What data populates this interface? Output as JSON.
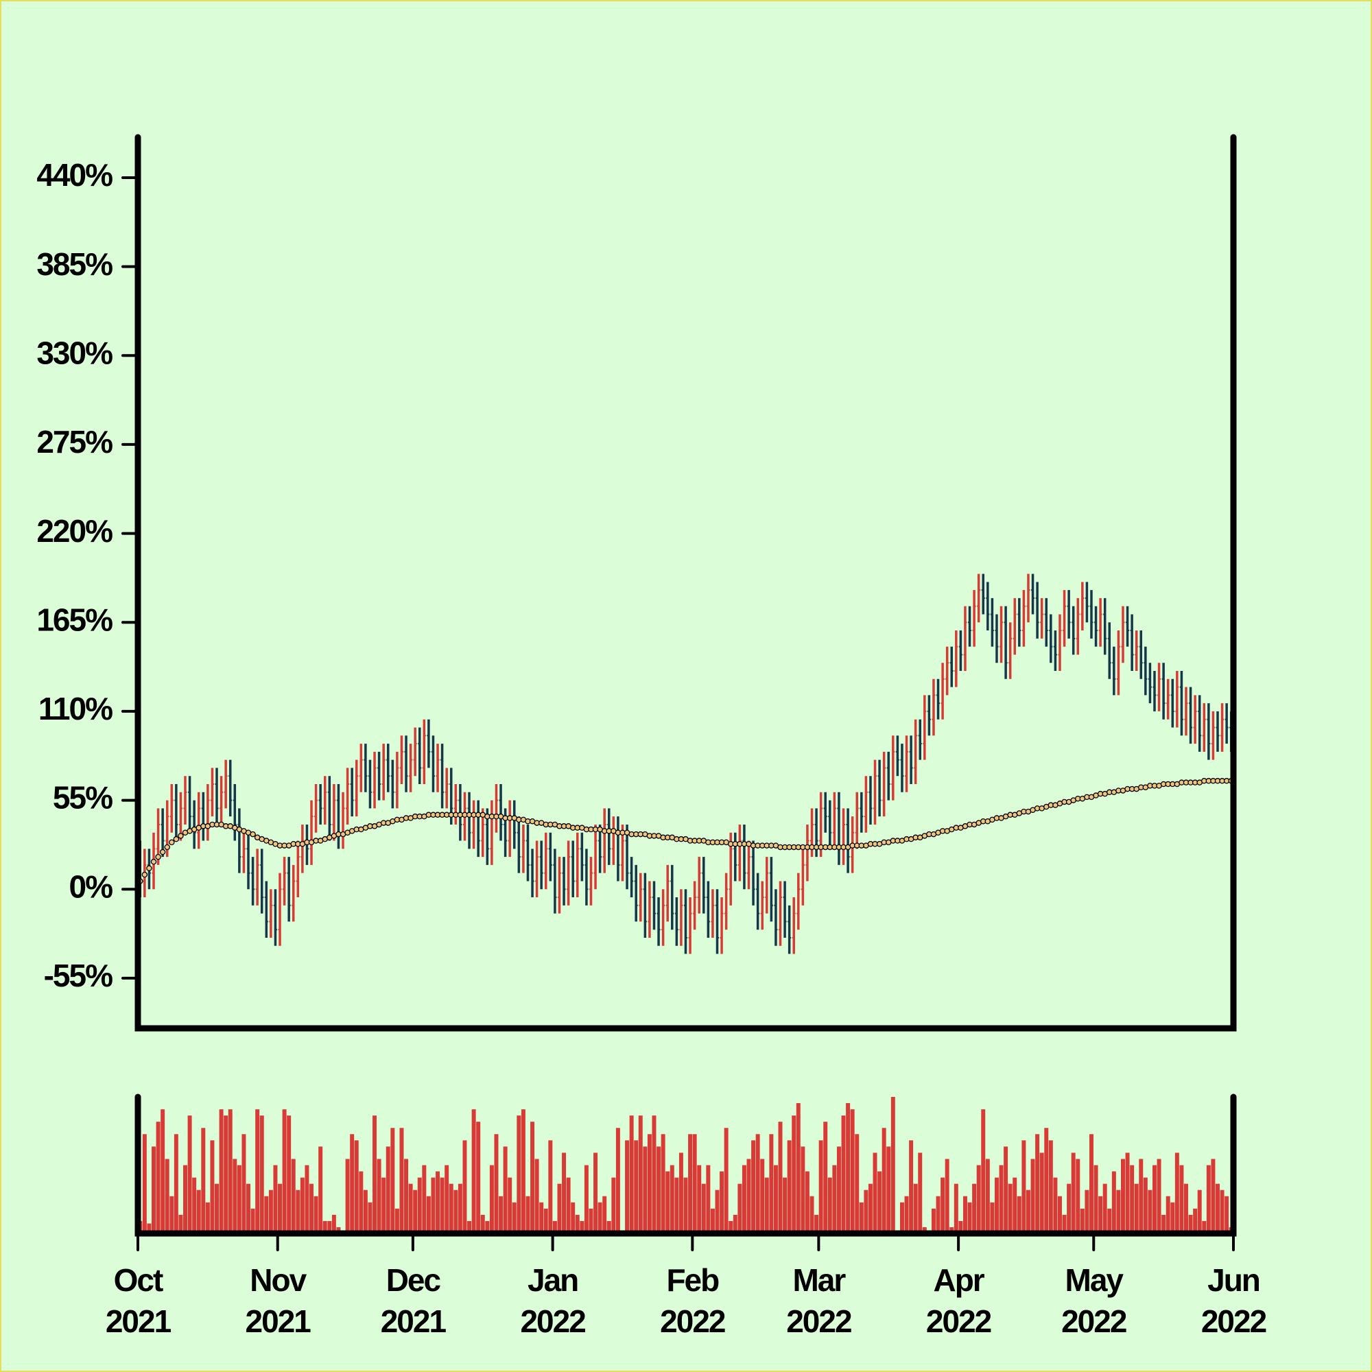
{
  "chart_data": {
    "type": "ohlc",
    "xlim": [
      0,
      243
    ],
    "xticks": [
      {
        "value": 0,
        "label": "Oct 2021"
      },
      {
        "value": 31,
        "label": "Nov 2021"
      },
      {
        "value": 61,
        "label": "Dec 2021"
      },
      {
        "value": 92,
        "label": "Jan 2022"
      },
      {
        "value": 123,
        "label": "Feb 2022"
      },
      {
        "value": 151,
        "label": "Mar 2022"
      },
      {
        "value": 182,
        "label": "Apr 2022"
      },
      {
        "value": 212,
        "label": "May 2022"
      },
      {
        "value": 243,
        "label": "Jun 2022"
      }
    ],
    "ylim": [
      -86,
      465
    ],
    "yticks": [
      {
        "value": -55,
        "label": "-55%"
      },
      {
        "value": 0,
        "label": "0%"
      },
      {
        "value": 55,
        "label": "55%"
      },
      {
        "value": 110,
        "label": "110%"
      },
      {
        "value": 165,
        "label": "165%"
      },
      {
        "value": 220,
        "label": "220%"
      },
      {
        "value": 275,
        "label": "275%"
      },
      {
        "value": 330,
        "label": "330%"
      },
      {
        "value": 385,
        "label": "385%"
      },
      {
        "value": 440,
        "label": "440%"
      }
    ],
    "up_color": "#d93a35",
    "down_color": "#14374a",
    "ma_color": "#f2c67a",
    "open": [
      20,
      5,
      15,
      10,
      25,
      40,
      30,
      45,
      55,
      40,
      50,
      60,
      45,
      35,
      50,
      40,
      55,
      65,
      50,
      60,
      70,
      55,
      40,
      20,
      25,
      10,
      0,
      15,
      -5,
      -20,
      -10,
      -25,
      0,
      10,
      -10,
      5,
      20,
      30,
      25,
      45,
      55,
      50,
      60,
      40,
      55,
      35,
      50,
      65,
      55,
      70,
      80,
      70,
      60,
      75,
      65,
      80,
      70,
      60,
      75,
      85,
      70,
      80,
      90,
      75,
      95,
      85,
      70,
      80,
      60,
      65,
      50,
      55,
      40,
      50,
      35,
      45,
      30,
      40,
      25,
      45,
      55,
      40,
      30,
      45,
      35,
      20,
      30,
      15,
      5,
      20,
      10,
      25,
      15,
      -5,
      10,
      0,
      20,
      5,
      25,
      15,
      0,
      10,
      30,
      20,
      40,
      25,
      35,
      15,
      30,
      10,
      5,
      -10,
      0,
      -20,
      -5,
      -15,
      -25,
      -10,
      5,
      -15,
      -25,
      -10,
      -30,
      -15,
      -5,
      10,
      -5,
      -20,
      -10,
      -30,
      -15,
      0,
      25,
      15,
      30,
      10,
      20,
      0,
      -15,
      -5,
      10,
      -10,
      -25,
      -5,
      -20,
      -30,
      -15,
      0,
      15,
      30,
      40,
      30,
      50,
      45,
      35,
      50,
      25,
      40,
      20,
      35,
      50,
      45,
      60,
      50,
      70,
      55,
      75,
      65,
      85,
      80,
      70,
      85,
      75,
      95,
      90,
      110,
      105,
      120,
      115,
      130,
      140,
      135,
      150,
      145,
      165,
      160,
      175,
      185,
      180,
      170,
      160,
      150,
      165,
      140,
      155,
      170,
      160,
      175,
      185,
      180,
      165,
      170,
      160,
      150,
      145,
      160,
      175,
      165,
      155,
      170,
      180,
      175,
      165,
      160,
      170,
      155,
      140,
      130,
      150,
      165,
      160,
      145,
      150,
      140,
      130,
      125,
      120,
      130,
      115,
      120,
      110,
      125,
      105,
      115,
      100,
      110,
      95,
      105,
      90,
      100,
      95,
      105,
      100
    ],
    "close": [
      5,
      15,
      10,
      25,
      40,
      30,
      45,
      55,
      40,
      50,
      60,
      45,
      35,
      50,
      40,
      55,
      65,
      50,
      60,
      70,
      55,
      40,
      20,
      25,
      10,
      0,
      15,
      -5,
      -20,
      -10,
      -25,
      0,
      10,
      -10,
      5,
      20,
      30,
      25,
      45,
      55,
      50,
      60,
      40,
      55,
      35,
      50,
      65,
      55,
      70,
      80,
      70,
      60,
      75,
      65,
      80,
      70,
      60,
      75,
      85,
      70,
      80,
      90,
      75,
      95,
      85,
      70,
      80,
      60,
      65,
      50,
      55,
      40,
      50,
      35,
      45,
      30,
      40,
      25,
      45,
      55,
      40,
      30,
      45,
      35,
      20,
      30,
      15,
      5,
      20,
      10,
      25,
      15,
      -5,
      10,
      0,
      20,
      5,
      25,
      15,
      0,
      10,
      30,
      20,
      40,
      25,
      35,
      15,
      30,
      10,
      5,
      -10,
      0,
      -20,
      -5,
      -15,
      -25,
      -10,
      5,
      -15,
      -25,
      -10,
      -30,
      -15,
      -5,
      10,
      -5,
      -20,
      -10,
      -30,
      -15,
      0,
      25,
      15,
      30,
      10,
      20,
      0,
      -15,
      -5,
      10,
      -10,
      -25,
      -5,
      -20,
      -30,
      -15,
      0,
      15,
      30,
      40,
      30,
      50,
      45,
      35,
      50,
      25,
      40,
      20,
      35,
      50,
      45,
      60,
      50,
      70,
      55,
      75,
      65,
      85,
      80,
      70,
      85,
      75,
      95,
      90,
      110,
      105,
      120,
      115,
      130,
      140,
      135,
      150,
      145,
      165,
      160,
      175,
      185,
      180,
      170,
      160,
      150,
      165,
      140,
      155,
      170,
      160,
      175,
      185,
      180,
      165,
      170,
      160,
      150,
      145,
      160,
      175,
      165,
      155,
      170,
      180,
      175,
      165,
      160,
      170,
      155,
      140,
      130,
      150,
      165,
      160,
      145,
      150,
      140,
      130,
      125,
      120,
      130,
      115,
      120,
      110,
      125,
      105,
      115,
      100,
      110,
      95,
      105,
      90,
      100,
      95,
      105,
      100,
      95
    ],
    "high": [
      30,
      25,
      25,
      35,
      50,
      50,
      55,
      65,
      65,
      60,
      70,
      70,
      55,
      60,
      60,
      65,
      75,
      75,
      70,
      80,
      80,
      65,
      50,
      35,
      35,
      20,
      25,
      25,
      5,
      0,
      0,
      10,
      20,
      20,
      15,
      30,
      40,
      40,
      55,
      65,
      65,
      70,
      70,
      65,
      65,
      60,
      75,
      75,
      80,
      90,
      90,
      80,
      85,
      85,
      90,
      90,
      80,
      85,
      95,
      95,
      90,
      100,
      100,
      105,
      105,
      95,
      90,
      90,
      75,
      75,
      65,
      65,
      60,
      60,
      55,
      55,
      50,
      50,
      55,
      65,
      65,
      50,
      55,
      55,
      45,
      40,
      40,
      25,
      30,
      30,
      35,
      35,
      25,
      20,
      20,
      30,
      30,
      35,
      35,
      25,
      20,
      40,
      40,
      50,
      50,
      45,
      45,
      40,
      40,
      20,
      15,
      10,
      10,
      5,
      5,
      -5,
      0,
      15,
      15,
      -5,
      0,
      0,
      -5,
      5,
      20,
      20,
      5,
      0,
      0,
      -5,
      10,
      35,
      35,
      40,
      40,
      30,
      30,
      10,
      5,
      20,
      20,
      0,
      5,
      5,
      -10,
      -5,
      10,
      25,
      40,
      50,
      50,
      60,
      60,
      55,
      60,
      60,
      50,
      50,
      45,
      60,
      60,
      70,
      70,
      80,
      80,
      85,
      85,
      95,
      95,
      90,
      95,
      95,
      105,
      105,
      120,
      120,
      130,
      130,
      140,
      150,
      150,
      160,
      160,
      175,
      175,
      185,
      195,
      195,
      190,
      180,
      170,
      175,
      175,
      165,
      180,
      180,
      185,
      195,
      195,
      190,
      180,
      180,
      170,
      160,
      170,
      185,
      185,
      175,
      180,
      190,
      190,
      185,
      175,
      180,
      180,
      165,
      150,
      160,
      175,
      175,
      170,
      160,
      160,
      150,
      140,
      135,
      140,
      140,
      130,
      130,
      135,
      135,
      125,
      125,
      120,
      120,
      115,
      115,
      110,
      110,
      115,
      115,
      110
    ],
    "low": [
      -5,
      -5,
      0,
      0,
      15,
      20,
      20,
      35,
      30,
      30,
      40,
      35,
      25,
      25,
      30,
      30,
      45,
      40,
      40,
      50,
      45,
      30,
      10,
      10,
      0,
      -10,
      -10,
      -15,
      -30,
      -30,
      -35,
      -35,
      -10,
      -20,
      -20,
      -5,
      10,
      15,
      15,
      35,
      40,
      40,
      30,
      30,
      25,
      25,
      40,
      45,
      45,
      60,
      60,
      50,
      50,
      55,
      55,
      60,
      50,
      50,
      65,
      60,
      60,
      70,
      65,
      65,
      75,
      60,
      60,
      50,
      50,
      40,
      40,
      30,
      30,
      25,
      25,
      20,
      20,
      15,
      15,
      35,
      30,
      20,
      20,
      25,
      10,
      10,
      5,
      -5,
      -5,
      0,
      0,
      5,
      -15,
      -15,
      -10,
      -10,
      -5,
      -5,
      5,
      -10,
      -10,
      0,
      10,
      10,
      15,
      15,
      5,
      5,
      0,
      -5,
      -20,
      -20,
      -30,
      -30,
      -25,
      -35,
      -35,
      -20,
      -25,
      -35,
      -35,
      -40,
      -40,
      -25,
      -15,
      -15,
      -30,
      -30,
      -40,
      -40,
      -25,
      -10,
      5,
      5,
      0,
      0,
      -10,
      -25,
      -25,
      -15,
      -20,
      -35,
      -35,
      -30,
      -40,
      -40,
      -25,
      -10,
      5,
      20,
      20,
      20,
      35,
      25,
      25,
      15,
      15,
      10,
      10,
      25,
      35,
      35,
      40,
      40,
      45,
      45,
      55,
      55,
      70,
      60,
      60,
      65,
      65,
      80,
      80,
      95,
      95,
      105,
      105,
      120,
      125,
      125,
      135,
      135,
      150,
      150,
      165,
      170,
      160,
      150,
      140,
      140,
      130,
      130,
      145,
      150,
      150,
      165,
      170,
      155,
      155,
      150,
      140,
      135,
      135,
      150,
      155,
      145,
      145,
      160,
      165,
      155,
      150,
      150,
      145,
      130,
      120,
      120,
      140,
      150,
      135,
      135,
      130,
      120,
      115,
      110,
      110,
      105,
      105,
      100,
      100,
      95,
      95,
      90,
      90,
      85,
      85,
      80,
      80,
      85,
      85,
      90,
      85
    ],
    "ma": [
      5,
      9,
      13,
      17,
      20,
      23,
      26,
      29,
      31,
      33,
      35,
      36,
      37,
      38,
      39,
      39,
      40,
      40,
      40,
      39,
      39,
      38,
      37,
      36,
      35,
      34,
      32,
      31,
      30,
      29,
      28,
      27,
      27,
      27,
      28,
      28,
      28,
      29,
      29,
      30,
      30,
      31,
      32,
      33,
      34,
      34,
      35,
      36,
      37,
      37,
      38,
      39,
      39,
      40,
      41,
      41,
      42,
      43,
      43,
      44,
      44,
      45,
      45,
      45,
      46,
      46,
      46,
      46,
      46,
      46,
      46,
      46,
      46,
      46,
      46,
      46,
      46,
      45,
      45,
      45,
      45,
      44,
      44,
      44,
      43,
      43,
      42,
      42,
      41,
      41,
      40,
      40,
      40,
      39,
      39,
      39,
      38,
      38,
      38,
      37,
      37,
      37,
      37,
      36,
      36,
      36,
      35,
      35,
      35,
      34,
      34,
      34,
      34,
      33,
      33,
      33,
      32,
      32,
      32,
      31,
      31,
      31,
      30,
      30,
      30,
      30,
      29,
      29,
      29,
      29,
      29,
      28,
      28,
      28,
      28,
      28,
      27,
      27,
      27,
      27,
      27,
      27,
      26,
      26,
      26,
      26,
      26,
      26,
      26,
      26,
      26,
      26,
      26,
      26,
      26,
      26,
      26,
      26,
      27,
      27,
      27,
      27,
      28,
      28,
      28,
      29,
      29,
      30,
      30,
      30,
      31,
      31,
      32,
      32,
      33,
      34,
      34,
      35,
      36,
      36,
      37,
      38,
      38,
      39,
      40,
      40,
      41,
      42,
      42,
      43,
      44,
      44,
      45,
      46,
      46,
      47,
      48,
      48,
      49,
      50,
      50,
      51,
      52,
      52,
      53,
      54,
      54,
      55,
      56,
      56,
      57,
      57,
      58,
      59,
      59,
      60,
      60,
      61,
      61,
      62,
      62,
      62,
      63,
      63,
      64,
      64,
      64,
      65,
      65,
      65,
      65,
      66,
      66,
      66,
      66,
      66,
      67,
      67,
      67,
      67,
      67,
      67,
      67
    ],
    "volume": {
      "ylim": [
        0,
        110
      ],
      "color": "#d93a35",
      "values": [
        10,
        80,
        8,
        70,
        90,
        100,
        60,
        30,
        80,
        15,
        55,
        95,
        45,
        35,
        85,
        25,
        75,
        40,
        100,
        95,
        100,
        60,
        55,
        80,
        40,
        20,
        100,
        95,
        30,
        35,
        55,
        40,
        100,
        95,
        60,
        35,
        45,
        55,
        40,
        30,
        70,
        10,
        10,
        15,
        5,
        0,
        60,
        80,
        75,
        50,
        35,
        25,
        95,
        60,
        45,
        70,
        85,
        20,
        85,
        60,
        40,
        35,
        45,
        55,
        30,
        45,
        50,
        45,
        55,
        40,
        35,
        40,
        75,
        10,
        100,
        90,
        15,
        10,
        55,
        80,
        30,
        70,
        45,
        25,
        95,
        100,
        30,
        90,
        60,
        25,
        20,
        75,
        10,
        40,
        65,
        45,
        25,
        15,
        10,
        55,
        20,
        65,
        25,
        30,
        10,
        45,
        85,
        0,
        75,
        95,
        75,
        95,
        70,
        80,
        95,
        70,
        80,
        50,
        55,
        45,
        65,
        45,
        80,
        80,
        55,
        40,
        55,
        20,
        35,
        50,
        85,
        10,
        15,
        40,
        55,
        60,
        75,
        80,
        60,
        45,
        80,
        55,
        90,
        45,
        75,
        95,
        105,
        70,
        50,
        30,
        15,
        75,
        90,
        45,
        55,
        70,
        95,
        105,
        100,
        80,
        25,
        35,
        40,
        65,
        50,
        85,
        70,
        110,
        0,
        25,
        30,
        75,
        40,
        65,
        5,
        0,
        20,
        30,
        45,
        60,
        5,
        40,
        10,
        30,
        25,
        40,
        55,
        100,
        60,
        25,
        45,
        55,
        70,
        40,
        45,
        30,
        75,
        35,
        60,
        80,
        65,
        85,
        75,
        45,
        30,
        15,
        40,
        65,
        60,
        20,
        35,
        80,
        55,
        30,
        40,
        20,
        50,
        35,
        60,
        65,
        55,
        40,
        60,
        45,
        35,
        55,
        60,
        15,
        30,
        25,
        65,
        55,
        40,
        15,
        20,
        35,
        10,
        55,
        60,
        40,
        35,
        30,
        5
      ]
    }
  }
}
